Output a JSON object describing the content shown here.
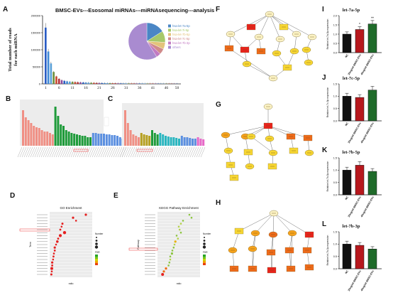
{
  "panels": {
    "A": {
      "letter": "A",
      "title": "BMSC-EVs---Esosomal miRNAs---miRNAsequencing---analysis",
      "ylabel_line1": "Total number of reads",
      "ylabel_line2": "for each miRNA",
      "yticks": [
        "0",
        "50000",
        "100000",
        "150000",
        "200000"
      ],
      "xticks": [
        "1",
        "6",
        "11",
        "16",
        "21",
        "26",
        "31",
        "36",
        "41",
        "46",
        "50"
      ],
      "legend": [
        "hsa-let-7a-5p",
        "hsa-let-7i-5p",
        "hsa-let-7b-5p",
        "hsa-let-7c-5p",
        "hsa-let-7b-3p",
        "others"
      ],
      "legend_colors": [
        "#4a86c5",
        "#a6c86a",
        "#e3c37a",
        "#d08a8a",
        "#c27ac2",
        "#a98bd0"
      ]
    },
    "B": {
      "letter": "B"
    },
    "C": {
      "letter": "C"
    },
    "D": {
      "letter": "D",
      "title": "GO Enrichment",
      "xlabel": "ratio",
      "ylabel": "Term",
      "legend_size_title": "Number",
      "legend_color_title": "FDR"
    },
    "E": {
      "letter": "E",
      "title": "KEGG Pathway Enrichment",
      "xlabel": "ratio",
      "ylabel": "Pathway",
      "legend_size_title": "Number",
      "legend_color_title": "FDR"
    },
    "F": {
      "letter": "F"
    },
    "G": {
      "letter": "G"
    },
    "H": {
      "letter": "H"
    },
    "I": {
      "letter": "I",
      "title": "let-7a-5p",
      "ylabel": "Relative let-7a-5p expression",
      "yticks": [
        "0.0",
        "0.5",
        "1.0",
        "1.5",
        "2.0"
      ],
      "groups": [
        "NC",
        "20ug/ml BMSC-EVs",
        "40ug/ml BMSC-EVs"
      ],
      "values": [
        1.0,
        1.25,
        1.55
      ],
      "sig": [
        "",
        "*",
        "**"
      ]
    },
    "J": {
      "letter": "J",
      "title": "let-7c-5p",
      "ylabel": "Relative let-7c-5p expression",
      "yticks": [
        "0.0",
        "0.5",
        "1.0",
        "1.5"
      ],
      "groups": [
        "NC",
        "20ug/ml BMSC-EVs",
        "40ug/ml BMSC-EVs"
      ],
      "values": [
        1.0,
        0.95,
        1.25
      ],
      "sig": [
        "",
        "",
        ""
      ]
    },
    "K": {
      "letter": "K",
      "title": "let-7b-5p",
      "ylabel": "Relative let-7b-5p expression",
      "yticks": [
        "0.0",
        "0.5",
        "1.0",
        "1.5"
      ],
      "groups": [
        "NC",
        "20ug/ml BMSC-EVs",
        "40ug/ml BMSC-EVs"
      ],
      "values": [
        1.0,
        1.2,
        0.95
      ],
      "sig": [
        "",
        "",
        ""
      ]
    },
    "L": {
      "letter": "L",
      "title": "let-7b-3p",
      "ylabel": "Relative let-7b-3p expression",
      "yticks": [
        "0.0",
        "0.5",
        "1.0",
        "1.5"
      ],
      "groups": [
        "NC",
        "20ug/ml BMSC-EVs",
        "40ug/ml BMSC-EVs"
      ],
      "values": [
        1.0,
        0.95,
        0.8
      ],
      "sig": [
        "",
        "",
        ""
      ]
    }
  },
  "chart_data": [
    {
      "type": "bar",
      "title": "BMSC-EVs---Esosomal miRNAs---miRNAsequencing---analysis",
      "ylabel": "Total number of reads for each miRNA",
      "ylim": [
        0,
        200000
      ],
      "x": [
        1,
        2,
        3,
        4,
        5,
        6,
        7,
        8,
        9,
        10,
        11,
        12,
        13,
        14,
        15,
        16,
        17,
        18,
        19,
        20,
        21,
        22,
        23,
        24,
        25,
        26,
        27,
        28,
        29,
        30,
        31,
        32,
        33,
        34,
        35,
        36,
        37,
        38,
        39,
        40,
        41,
        42,
        43,
        44,
        45,
        46,
        47,
        48,
        49,
        50
      ],
      "values": [
        165000,
        95000,
        60000,
        35000,
        22000,
        15000,
        11000,
        9000,
        7500,
        6500,
        6000,
        5500,
        5000,
        4600,
        4200,
        3900,
        3600,
        3300,
        3100,
        2900,
        2700,
        2500,
        2300,
        2100,
        2000,
        1900,
        1800,
        1700,
        1600,
        1500,
        1450,
        1400,
        1350,
        1300,
        1250,
        1200,
        1150,
        1100,
        1050,
        1000,
        950,
        900,
        850,
        800,
        750,
        700,
        650,
        600,
        550,
        500
      ]
    },
    {
      "type": "pie",
      "labels": [
        "hsa-let-7a-5p",
        "hsa-let-7i-5p",
        "hsa-let-7b-5p",
        "hsa-let-7c-5p",
        "hsa-let-7b-3p",
        "others"
      ],
      "values": [
        16,
        10,
        6,
        5,
        4,
        59
      ]
    },
    {
      "type": "bar",
      "title": "let-7a-5p",
      "categories": [
        "NC",
        "20ug/ml BMSC-EVs",
        "40ug/ml BMSC-EVs"
      ],
      "values": [
        1.0,
        1.25,
        1.55
      ],
      "ylim": [
        0,
        2.0
      ]
    },
    {
      "type": "bar",
      "title": "let-7c-5p",
      "categories": [
        "NC",
        "20ug/ml BMSC-EVs",
        "40ug/ml BMSC-EVs"
      ],
      "values": [
        1.0,
        0.95,
        1.25
      ],
      "ylim": [
        0,
        1.5
      ]
    },
    {
      "type": "bar",
      "title": "let-7b-5p",
      "categories": [
        "NC",
        "20ug/ml BMSC-EVs",
        "40ug/ml BMSC-EVs"
      ],
      "values": [
        1.0,
        1.2,
        0.95
      ],
      "ylim": [
        0,
        1.5
      ]
    },
    {
      "type": "bar",
      "title": "let-7b-3p",
      "categories": [
        "NC",
        "20ug/ml BMSC-EVs",
        "40ug/ml BMSC-EVs"
      ],
      "values": [
        1.0,
        0.95,
        0.8
      ],
      "ylim": [
        0,
        1.5
      ]
    }
  ]
}
